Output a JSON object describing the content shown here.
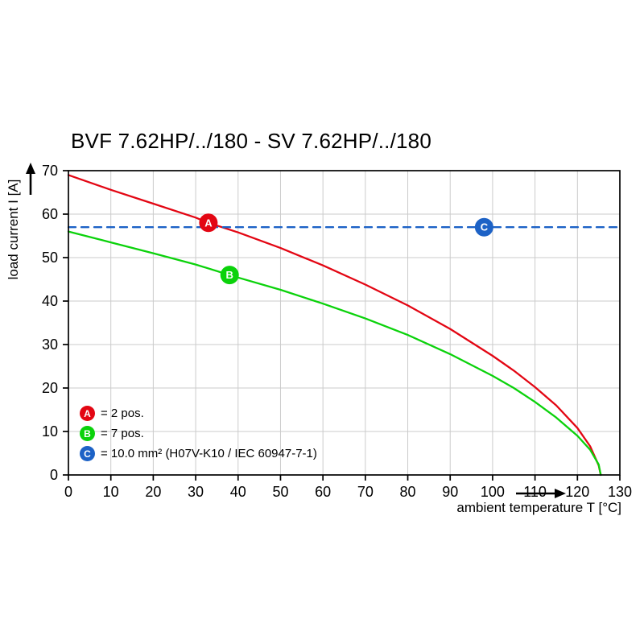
{
  "title": "BVF 7.62HP/../180 - SV 7.62HP/../180",
  "chart_data": {
    "type": "line",
    "title": "BVF 7.62HP/../180 - SV 7.62HP/../180",
    "xlabel": "ambient temperature T [°C]",
    "ylabel": "load current I [A]",
    "xlim": [
      0,
      130
    ],
    "ylim": [
      0,
      70
    ],
    "xticks": [
      0,
      10,
      20,
      30,
      40,
      50,
      60,
      70,
      80,
      90,
      100,
      110,
      120,
      130
    ],
    "yticks": [
      0,
      10,
      20,
      30,
      40,
      50,
      60,
      70
    ],
    "grid": true,
    "legend_position": "lower-left",
    "series": [
      {
        "name": "A",
        "label": "= 2 pos.",
        "color": "#e30613",
        "style": "solid",
        "points": [
          [
            0,
            69
          ],
          [
            10,
            65.6
          ],
          [
            20,
            62.4
          ],
          [
            30,
            59.2
          ],
          [
            33,
            58
          ],
          [
            40,
            55.8
          ],
          [
            50,
            52.2
          ],
          [
            60,
            48.2
          ],
          [
            70,
            43.8
          ],
          [
            80,
            39
          ],
          [
            90,
            33.6
          ],
          [
            100,
            27.4
          ],
          [
            105,
            24
          ],
          [
            110,
            20.2
          ],
          [
            115,
            16
          ],
          [
            120,
            10.8
          ],
          [
            123,
            6.6
          ],
          [
            125,
            2.2
          ],
          [
            125.5,
            0
          ]
        ]
      },
      {
        "name": "B",
        "label": "= 7 pos.",
        "color": "#0bd20b",
        "style": "solid",
        "points": [
          [
            0,
            56
          ],
          [
            10,
            53.5
          ],
          [
            20,
            51
          ],
          [
            30,
            48.4
          ],
          [
            38,
            46
          ],
          [
            40,
            45.4
          ],
          [
            50,
            42.6
          ],
          [
            60,
            39.4
          ],
          [
            70,
            36
          ],
          [
            80,
            32.2
          ],
          [
            90,
            27.8
          ],
          [
            100,
            22.8
          ],
          [
            105,
            20
          ],
          [
            110,
            16.8
          ],
          [
            115,
            13.2
          ],
          [
            120,
            9
          ],
          [
            123,
            5.8
          ],
          [
            125,
            2.4
          ],
          [
            125.5,
            0
          ]
        ]
      },
      {
        "name": "C",
        "label": "= 10.0 mm² (H07V-K10 / IEC 60947-7-1)",
        "color": "#1d62c6",
        "style": "dashed",
        "points": [
          [
            0,
            57
          ],
          [
            130,
            57
          ]
        ]
      }
    ],
    "markers": [
      {
        "letter": "A",
        "x": 33,
        "y": 58,
        "color": "#e30613"
      },
      {
        "letter": "B",
        "x": 38,
        "y": 46,
        "color": "#0bd20b"
      },
      {
        "letter": "C",
        "x": 98,
        "y": 57,
        "color": "#1d62c6"
      }
    ]
  }
}
